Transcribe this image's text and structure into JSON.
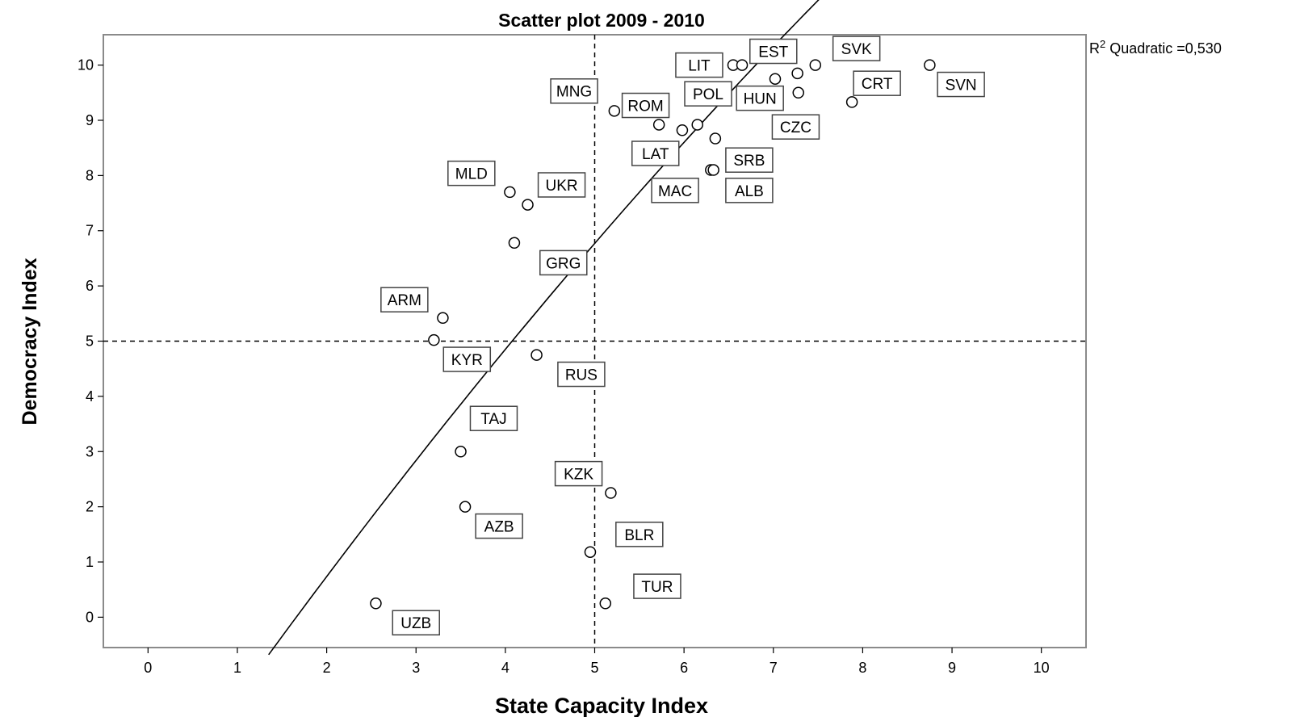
{
  "chart_data": {
    "type": "scatter",
    "title": "Scatter plot 2009 - 2010",
    "xlabel": "State Capacity Index",
    "ylabel": "Democracy Index",
    "xlim": [
      -0.5,
      10.5
    ],
    "ylim": [
      -0.55,
      10.55
    ],
    "xticks": [
      "0",
      "1",
      "2",
      "3",
      "4",
      "5",
      "6",
      "7",
      "8",
      "9",
      "10"
    ],
    "yticks": [
      "0",
      "1",
      "2",
      "3",
      "4",
      "5",
      "6",
      "7",
      "8",
      "9",
      "10"
    ],
    "reference_lines": {
      "x": 5,
      "y": 5,
      "style": "dashed"
    },
    "fit": {
      "label_prefix": "R",
      "label_sup": "2",
      "label_suffix": " Quadratic =0,530",
      "type": "quadratic",
      "x_range": [
        1.35,
        8.3
      ],
      "coefficients": {
        "a": -0.0457,
        "b": 2.3314,
        "c": -3.7435
      }
    },
    "points": [
      {
        "label": "UZB",
        "x": 2.55,
        "y": 0.25
      },
      {
        "label": "AZB",
        "x": 3.55,
        "y": 2.0
      },
      {
        "label": "TAJ",
        "x": 3.5,
        "y": 3.0
      },
      {
        "label": "KYR",
        "x": 3.2,
        "y": 5.02
      },
      {
        "label": "ARM",
        "x": 3.3,
        "y": 5.42
      },
      {
        "label": "GRG",
        "x": 4.1,
        "y": 6.78
      },
      {
        "label": "MLD",
        "x": 4.05,
        "y": 7.7
      },
      {
        "label": "UKR",
        "x": 4.25,
        "y": 7.47
      },
      {
        "label": "RUS",
        "x": 4.35,
        "y": 4.75
      },
      {
        "label": "TUR",
        "x": 5.12,
        "y": 0.25
      },
      {
        "label": "BLR",
        "x": 4.95,
        "y": 1.18
      },
      {
        "label": "KZK",
        "x": 5.18,
        "y": 2.25
      },
      {
        "label": "MNG",
        "x": 5.22,
        "y": 9.17
      },
      {
        "label": "LAT",
        "x": 5.72,
        "y": 8.92
      },
      {
        "label": "ROM",
        "x": 5.98,
        "y": 8.82
      },
      {
        "label": "POL",
        "x": 6.15,
        "y": 8.92
      },
      {
        "label": "SRB",
        "x": 6.35,
        "y": 8.67
      },
      {
        "label": "MAC",
        "x": 6.3,
        "y": 8.1
      },
      {
        "label": "ALB",
        "x": 6.33,
        "y": 8.1
      },
      {
        "label": "LIT",
        "x": 6.55,
        "y": 10.0
      },
      {
        "label": "EST",
        "x": 6.65,
        "y": 10.0
      },
      {
        "label": "HUN",
        "x": 7.02,
        "y": 9.75
      },
      {
        "label": "CZC",
        "x": 7.28,
        "y": 9.5
      },
      {
        "label": "SVK",
        "x": 7.27,
        "y": 9.85
      },
      {
        "label": "SVK",
        "x": 7.47,
        "y": 10.0
      },
      {
        "label": "CRT",
        "x": 7.88,
        "y": 9.33
      },
      {
        "label": "SVN",
        "x": 8.75,
        "y": 10.0
      }
    ],
    "labels": [
      {
        "text": "UZB",
        "x": 3.0,
        "y": -0.1
      },
      {
        "text": "AZB",
        "x": 3.93,
        "y": 1.65
      },
      {
        "text": "TAJ",
        "x": 3.87,
        "y": 3.6
      },
      {
        "text": "KYR",
        "x": 3.57,
        "y": 4.67
      },
      {
        "text": "ARM",
        "x": 2.87,
        "y": 5.75
      },
      {
        "text": "GRG",
        "x": 4.65,
        "y": 6.42
      },
      {
        "text": "MLD",
        "x": 3.62,
        "y": 8.04
      },
      {
        "text": "UKR",
        "x": 4.63,
        "y": 7.83
      },
      {
        "text": "RUS",
        "x": 4.85,
        "y": 4.4
      },
      {
        "text": "TUR",
        "x": 5.7,
        "y": 0.56
      },
      {
        "text": "BLR",
        "x": 5.5,
        "y": 1.5
      },
      {
        "text": "KZK",
        "x": 4.82,
        "y": 2.6
      },
      {
        "text": "MNG",
        "x": 4.77,
        "y": 9.53
      },
      {
        "text": "LAT",
        "x": 5.68,
        "y": 8.4
      },
      {
        "text": "ROM",
        "x": 5.57,
        "y": 9.27
      },
      {
        "text": "POL",
        "x": 6.27,
        "y": 9.48
      },
      {
        "text": "SRB",
        "x": 6.73,
        "y": 8.28
      },
      {
        "text": "MAC",
        "x": 5.9,
        "y": 7.73
      },
      {
        "text": "ALB",
        "x": 6.73,
        "y": 7.73
      },
      {
        "text": "LIT",
        "x": 6.17,
        "y": 10.0
      },
      {
        "text": "EST",
        "x": 7.0,
        "y": 10.25
      },
      {
        "text": "HUN",
        "x": 6.85,
        "y": 9.4
      },
      {
        "text": "CZC",
        "x": 7.25,
        "y": 8.88
      },
      {
        "text": "SVK",
        "x": 7.93,
        "y": 10.3
      },
      {
        "text": "CRT",
        "x": 8.16,
        "y": 9.67
      },
      {
        "text": "SVN",
        "x": 9.1,
        "y": 9.65
      }
    ]
  }
}
